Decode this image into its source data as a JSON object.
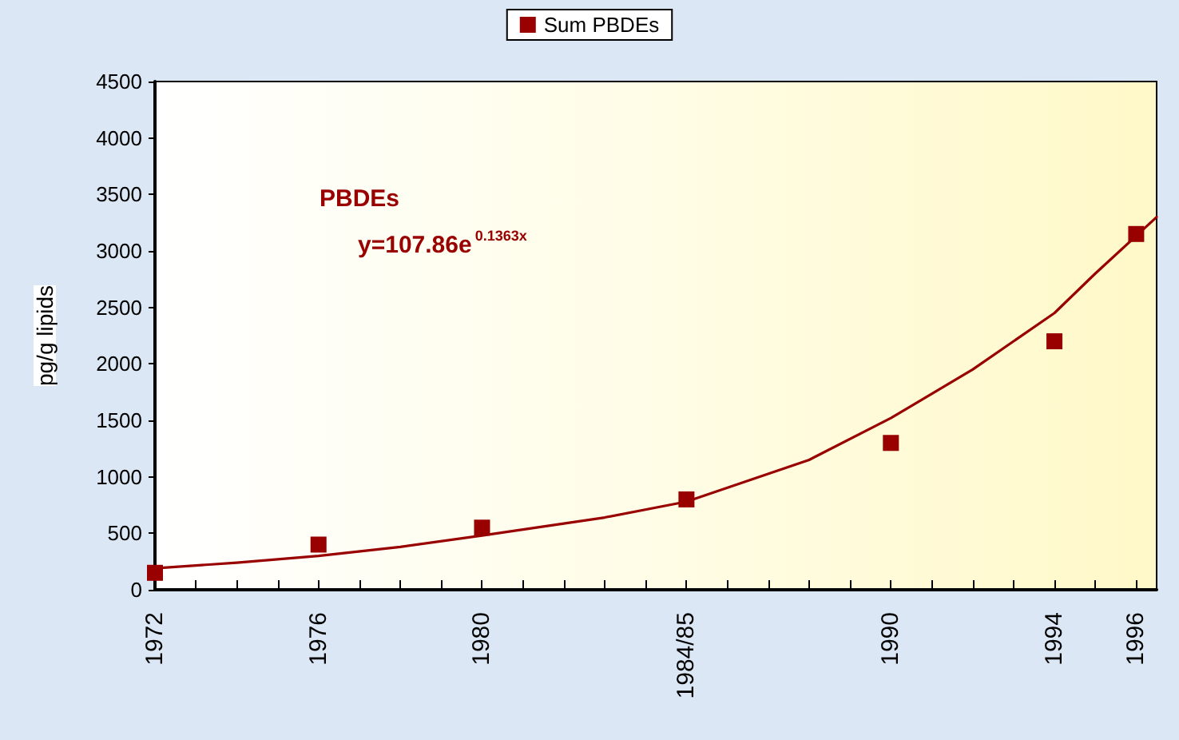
{
  "chart_data": {
    "type": "scatter",
    "ylabel": "pg/g lipids",
    "annotations": [
      "PBDEs",
      "y=107.86e$^{0.1363x}$"
    ],
    "x": [
      1972,
      1976,
      1980,
      1985,
      1990,
      1994,
      1996
    ],
    "series": [
      {
        "name": "Sum PBDEs",
        "color": "#990000",
        "values": [
          150,
          400,
          550,
          800,
          1300,
          2200,
          3150
        ],
        "marker": "square"
      },
      {
        "type": "line",
        "color": "#990000",
        "marker": "none",
        "x": [
          1972,
          1974,
          1976,
          1978,
          1980,
          1983,
          1985,
          1988,
          1990,
          1992,
          1994,
          1995,
          1996.5
        ],
        "values": [
          190,
          240,
          300,
          380,
          480,
          640,
          780,
          1150,
          1520,
          1950,
          2450,
          2800,
          3300
        ]
      }
    ],
    "xlim": [
      1972,
      1996.5
    ],
    "xticks": [
      {
        "value": 1972,
        "label": "1972"
      },
      {
        "value": 1973,
        "label": null
      },
      {
        "value": 1974,
        "label": null
      },
      {
        "value": 1975,
        "label": null
      },
      {
        "value": 1976,
        "label": "1976"
      },
      {
        "value": 1977,
        "label": null
      },
      {
        "value": 1978,
        "label": null
      },
      {
        "value": 1979,
        "label": null
      },
      {
        "value": 1980,
        "label": "1980"
      },
      {
        "value": 1981,
        "label": null
      },
      {
        "value": 1982,
        "label": null
      },
      {
        "value": 1983,
        "label": null
      },
      {
        "value": 1984,
        "label": null
      },
      {
        "value": 1985,
        "label": "1984/85"
      },
      {
        "value": 1986,
        "label": null
      },
      {
        "value": 1987,
        "label": null
      },
      {
        "value": 1988,
        "label": null
      },
      {
        "value": 1989,
        "label": null
      },
      {
        "value": 1990,
        "label": "1990"
      },
      {
        "value": 1991,
        "label": null
      },
      {
        "value": 1992,
        "label": null
      },
      {
        "value": 1993,
        "label": null
      },
      {
        "value": 1994,
        "label": "1994"
      },
      {
        "value": 1995,
        "label": null
      },
      {
        "value": 1996,
        "label": "1996"
      }
    ],
    "ylim": [
      0,
      4500
    ],
    "yticks": [
      0,
      500,
      1000,
      1500,
      2000,
      2500,
      3000,
      3500,
      4000,
      4500
    ],
    "grid": false,
    "legend": "top"
  }
}
